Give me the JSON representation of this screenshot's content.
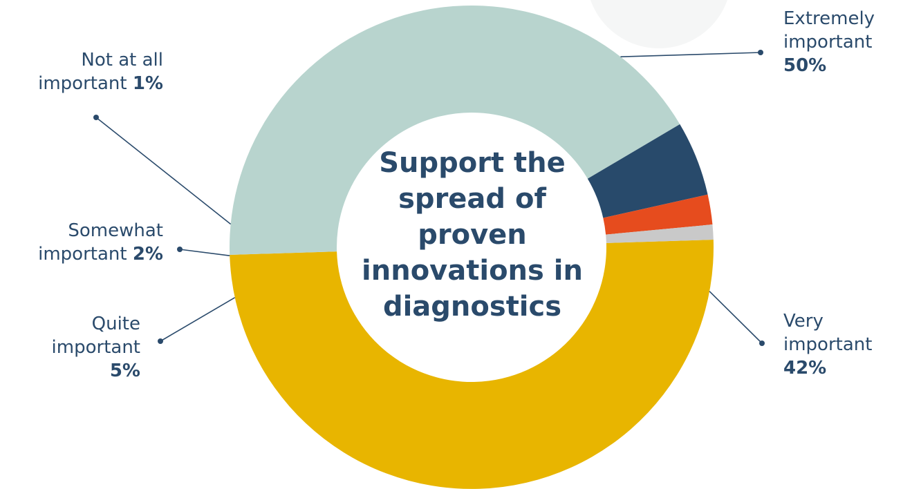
{
  "chart_data": {
    "type": "pie",
    "title": "Support the spread of proven innovations in diagnostics",
    "slices": [
      {
        "key": "extremely",
        "label_lines": [
          "Extremely",
          "important"
        ],
        "value": 50,
        "value_label": "50%",
        "color": "#e8b500"
      },
      {
        "key": "very",
        "label_lines": [
          "Very",
          "important"
        ],
        "value": 42,
        "value_label": "42%",
        "color": "#b8d4ce"
      },
      {
        "key": "quite",
        "label_lines": [
          "Quite",
          "important"
        ],
        "value": 5,
        "value_label": "5%",
        "color": "#284a6b"
      },
      {
        "key": "somewhat",
        "label_lines": [
          "Somewhat",
          "important"
        ],
        "value": 2,
        "value_label": "2%",
        "color": "#e64c1e"
      },
      {
        "key": "not",
        "label_lines": [
          "Not at all",
          "important"
        ],
        "value": 1,
        "value_label": "1%",
        "color": "#c9c9c9"
      }
    ]
  }
}
